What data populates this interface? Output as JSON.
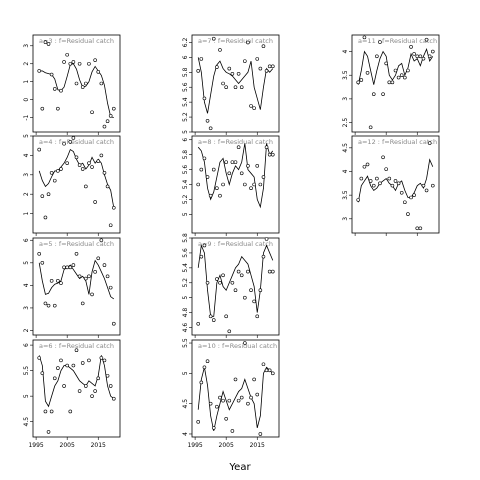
{
  "chart_data": {
    "type": "line",
    "xlabel": "Year",
    "x_ticks": [
      1995,
      2005,
      2015
    ],
    "xlim": [
      1994,
      2022
    ],
    "panels": [
      {
        "title": "a=3  :  f=Residual catch",
        "col": 0,
        "row": 0,
        "ylim": [
          -1.8,
          3.6
        ],
        "y_ticks": [
          -1,
          0,
          1,
          2,
          3
        ],
        "x": [
          1996,
          1997,
          1998,
          1999,
          2000,
          2001,
          2002,
          2003,
          2004,
          2005,
          2006,
          2007,
          2008,
          2009,
          2010,
          2011,
          2012,
          2013,
          2014,
          2015,
          2016,
          2017,
          2018,
          2019,
          2020
        ],
        "line": [
          1.6,
          1.6,
          1.5,
          1.45,
          1.4,
          1.15,
          0.55,
          0.5,
          0.7,
          1.3,
          1.95,
          2.0,
          1.7,
          1.1,
          0.7,
          0.75,
          1.0,
          1.55,
          1.85,
          1.6,
          1.35,
          0.8,
          -0.2,
          -0.95,
          -1.0
        ],
        "points": [
          1.6,
          -0.5,
          3.2,
          3.1,
          1.4,
          0.6,
          -0.5,
          0.5,
          2.1,
          2.5,
          2.0,
          2.1,
          0.9,
          2.0,
          0.7,
          0.9,
          2.0,
          -0.7,
          2.2,
          1.55,
          0.9,
          -1.5,
          -1.2,
          -0.9,
          -0.5
        ]
      },
      {
        "title": "a=4  :  f=Residual catch",
        "col": 0,
        "row": 1,
        "ylim": [
          0,
          5
        ],
        "y_ticks": [
          1,
          2,
          3,
          4,
          5
        ],
        "x": [
          1996,
          1997,
          1998,
          1999,
          2000,
          2001,
          2002,
          2003,
          2004,
          2005,
          2006,
          2007,
          2008,
          2009,
          2010,
          2011,
          2012,
          2013,
          2014,
          2015,
          2016,
          2017,
          2018,
          2019,
          2020
        ],
        "line": [
          3.2,
          2.7,
          2.4,
          2.55,
          2.9,
          3.2,
          3.2,
          3.4,
          3.6,
          3.9,
          4.3,
          4.2,
          3.8,
          3.5,
          3.6,
          3.3,
          3.5,
          3.9,
          3.6,
          3.8,
          3.6,
          3.0,
          2.5,
          2.2,
          1.3
        ],
        "points": [
          4.3,
          1.9,
          0.8,
          2.0,
          3.1,
          2.7,
          3.2,
          3.3,
          4.6,
          3.6,
          4.7,
          4.9,
          3.9,
          3.5,
          3.3,
          2.4,
          3.6,
          3.4,
          1.6,
          3.7,
          4.0,
          3.1,
          2.4,
          0.4,
          1.3
        ]
      },
      {
        "title": "a=5  :  f=Residual catch",
        "col": 0,
        "row": 2,
        "ylim": [
          1.8,
          6.1
        ],
        "y_ticks": [
          2,
          3,
          4,
          5,
          6
        ],
        "x": [
          1996,
          1997,
          1998,
          1999,
          2000,
          2001,
          2002,
          2003,
          2004,
          2005,
          2006,
          2007,
          2008,
          2009,
          2010,
          2011,
          2012,
          2013,
          2014,
          2015,
          2016,
          2017,
          2018,
          2019,
          2020
        ],
        "line": [
          5.0,
          4.2,
          3.6,
          3.65,
          3.9,
          4.05,
          4.1,
          4.2,
          4.7,
          4.8,
          4.9,
          4.7,
          4.5,
          4.3,
          4.4,
          4.2,
          3.6,
          4.6,
          5.1,
          4.9,
          4.6,
          4.3,
          3.9,
          3.5,
          3.4
        ],
        "points": [
          5.4,
          5.0,
          3.2,
          3.1,
          4.2,
          3.1,
          4.2,
          4.1,
          4.8,
          4.8,
          4.8,
          4.9,
          5.4,
          4.4,
          3.2,
          4.3,
          4.4,
          3.6,
          4.6,
          5.2,
          6.0,
          4.9,
          4.4,
          3.9,
          2.3
        ]
      },
      {
        "title": "a=6  :  f=Residual catch",
        "col": 0,
        "row": 3,
        "ylim": [
          4.2,
          6.1
        ],
        "y_ticks": [
          4.5,
          5.0,
          5.5,
          6.0
        ],
        "x": [
          1996,
          1997,
          1998,
          1999,
          2000,
          2001,
          2002,
          2003,
          2004,
          2005,
          2006,
          2007,
          2008,
          2009,
          2010,
          2011,
          2012,
          2013,
          2014,
          2015,
          2016,
          2017,
          2018,
          2019,
          2020
        ],
        "line": [
          5.8,
          5.6,
          4.9,
          4.8,
          5.0,
          5.2,
          5.3,
          5.5,
          5.6,
          5.6,
          5.55,
          5.5,
          5.4,
          5.3,
          5.25,
          5.2,
          5.3,
          5.25,
          5.2,
          5.4,
          5.8,
          5.6,
          5.2,
          5.0,
          4.95
        ],
        "points": [
          5.75,
          5.45,
          4.7,
          4.3,
          4.7,
          5.35,
          5.55,
          5.7,
          5.2,
          5.6,
          4.7,
          5.6,
          5.9,
          5.1,
          5.65,
          5.2,
          5.7,
          5.0,
          5.1,
          5.35,
          5.75,
          5.7,
          5.4,
          5.2,
          4.95
        ]
      },
      {
        "title": "a=7  :  f=Residual catch",
        "col": 1,
        "row": 0,
        "ylim": [
          5.0,
          6.3
        ],
        "y_ticks": [
          5.0,
          5.2,
          5.4,
          5.6,
          5.8,
          6.0,
          6.2
        ],
        "x": [
          1996,
          1997,
          1998,
          1999,
          2000,
          2001,
          2002,
          2003,
          2004,
          2005,
          2006,
          2007,
          2008,
          2009,
          2010,
          2011,
          2012,
          2013,
          2014,
          2015,
          2016,
          2017,
          2018,
          2019,
          2020
        ],
        "line": [
          6.0,
          5.8,
          5.4,
          5.25,
          5.5,
          5.75,
          5.9,
          5.95,
          5.85,
          5.8,
          5.78,
          5.75,
          5.7,
          5.65,
          5.7,
          5.75,
          5.8,
          5.95,
          5.6,
          5.45,
          5.3,
          5.6,
          5.85,
          5.8,
          5.85
        ],
        "points": [
          5.82,
          5.98,
          5.45,
          5.15,
          5.05,
          6.25,
          5.87,
          6.1,
          5.65,
          5.6,
          5.85,
          5.78,
          5.6,
          5.78,
          5.6,
          5.95,
          6.2,
          5.35,
          5.32,
          5.98,
          5.85,
          6.15,
          5.82,
          5.88,
          5.88
        ]
      },
      {
        "title": "a=8  :  f=Residual catch",
        "col": 1,
        "row": 1,
        "ylim": [
          4.75,
          6.05
        ],
        "y_ticks": [
          5.0,
          5.2,
          5.4,
          5.6,
          5.8,
          6.0
        ],
        "x": [
          1996,
          1997,
          1998,
          1999,
          2000,
          2001,
          2002,
          2003,
          2004,
          2005,
          2006,
          2007,
          2008,
          2009,
          2010,
          2011,
          2012,
          2013,
          2014,
          2015,
          2016,
          2017,
          2018,
          2019,
          2020
        ],
        "line": [
          5.9,
          5.85,
          5.7,
          5.35,
          5.2,
          5.3,
          5.5,
          5.7,
          5.75,
          5.55,
          5.4,
          5.55,
          5.65,
          5.6,
          5.7,
          5.95,
          5.6,
          5.55,
          5.5,
          5.2,
          5.1,
          5.35,
          5.95,
          5.8,
          5.85
        ],
        "points": [
          5.4,
          5.6,
          5.75,
          5.5,
          5.25,
          5.6,
          5.35,
          5.25,
          5.4,
          5.7,
          5.55,
          5.7,
          5.7,
          5.9,
          5.55,
          5.4,
          5.65,
          5.35,
          5.4,
          5.65,
          5.4,
          5.5,
          5.9,
          5.8,
          5.8
        ]
      },
      {
        "title": "a=9  :  f=Residual catch",
        "col": 1,
        "row": 2,
        "ylim": [
          4.5,
          5.8
        ],
        "y_ticks": [
          4.6,
          4.8,
          5.0,
          5.2,
          5.4,
          5.6,
          5.8
        ],
        "x": [
          1996,
          1997,
          1998,
          1999,
          2000,
          2001,
          2002,
          2003,
          2004,
          2005,
          2006,
          2007,
          2008,
          2009,
          2010,
          2011,
          2012,
          2013,
          2014,
          2015,
          2016,
          2017,
          2018,
          2019,
          2020
        ],
        "line": [
          5.4,
          5.7,
          5.6,
          5.1,
          4.75,
          4.75,
          5.2,
          5.3,
          5.15,
          5.1,
          5.2,
          5.3,
          5.4,
          5.45,
          5.55,
          5.5,
          5.45,
          5.3,
          5.15,
          4.8,
          5.1,
          5.6,
          5.7,
          5.6,
          5.5
        ],
        "points": [
          4.65,
          5.55,
          5.7,
          5.2,
          4.75,
          4.7,
          5.25,
          5.2,
          5.3,
          4.75,
          4.55,
          5.2,
          5.1,
          5.35,
          5.3,
          5.0,
          5.35,
          5.1,
          4.95,
          4.75,
          5.1,
          5.55,
          5.8,
          5.35,
          5.35
        ]
      },
      {
        "title": "a=10  :  f=Residual catch",
        "col": 1,
        "row": 3,
        "ylim": [
          3.95,
          5.55
        ],
        "y_ticks": [
          4.0,
          4.5,
          5.0,
          5.5
        ],
        "x": [
          1996,
          1997,
          1998,
          1999,
          2000,
          2001,
          2002,
          2003,
          2004,
          2005,
          2006,
          2007,
          2008,
          2009,
          2010,
          2011,
          2012,
          2013,
          2014,
          2015,
          2016,
          2017,
          2018,
          2019,
          2020
        ],
        "line": [
          4.4,
          4.9,
          5.1,
          4.8,
          4.3,
          4.05,
          4.3,
          4.5,
          4.7,
          4.55,
          4.4,
          4.5,
          4.6,
          4.7,
          4.75,
          4.9,
          4.75,
          4.6,
          4.5,
          4.1,
          4.3,
          5.0,
          5.1,
          5.05,
          5.0
        ],
        "points": [
          4.2,
          4.85,
          5.1,
          5.2,
          4.5,
          4.1,
          4.45,
          4.6,
          4.55,
          4.25,
          4.55,
          4.05,
          4.9,
          4.55,
          4.6,
          5.5,
          4.5,
          4.6,
          4.9,
          4.65,
          4.0,
          5.15,
          5.05,
          5.05,
          5.0
        ]
      },
      {
        "title": "a=11  :  f=Residual catch",
        "col": 2,
        "row": 0,
        "ylim": [
          2.3,
          4.35
        ],
        "y_ticks": [
          2.5,
          3.0,
          3.5,
          4.0
        ],
        "x": [
          1996,
          1997,
          1998,
          1999,
          2000,
          2001,
          2002,
          2003,
          2004,
          2005,
          2006,
          2007,
          2008,
          2009,
          2010,
          2011,
          2012,
          2013,
          2014,
          2015,
          2016,
          2017,
          2018,
          2019,
          2020
        ],
        "line": [
          3.3,
          3.6,
          4.0,
          3.9,
          3.6,
          3.3,
          3.6,
          3.85,
          4.0,
          3.9,
          3.5,
          3.4,
          3.5,
          3.7,
          3.75,
          3.5,
          3.65,
          3.95,
          3.8,
          3.85,
          3.7,
          3.9,
          4.05,
          3.8,
          3.9
        ],
        "points": [
          3.35,
          3.4,
          4.3,
          3.55,
          2.4,
          3.1,
          3.9,
          4.2,
          3.1,
          3.75,
          3.35,
          3.35,
          3.6,
          3.45,
          3.5,
          3.45,
          3.6,
          4.1,
          3.95,
          3.9,
          3.9,
          3.85,
          4.25,
          3.9,
          4.0
        ]
      },
      {
        "title": "a=12  :  f=Residual catch",
        "col": 2,
        "row": 1,
        "ylim": [
          2.7,
          4.75
        ],
        "y_ticks": [
          3.0,
          3.5,
          4.0,
          4.5
        ],
        "x": [
          1996,
          1997,
          1998,
          1999,
          2000,
          2001,
          2002,
          2003,
          2004,
          2005,
          2006,
          2007,
          2008,
          2009,
          2010,
          2011,
          2012,
          2013,
          2014,
          2015,
          2016,
          2017,
          2018,
          2019,
          2020
        ],
        "line": [
          3.35,
          3.7,
          3.8,
          3.9,
          3.7,
          3.6,
          3.65,
          3.75,
          3.8,
          3.85,
          3.75,
          3.7,
          3.6,
          3.75,
          3.8,
          3.6,
          3.45,
          3.45,
          3.55,
          3.7,
          3.75,
          3.65,
          3.85,
          4.25,
          4.1
        ],
        "points": [
          3.4,
          3.85,
          4.1,
          4.15,
          3.8,
          3.7,
          3.85,
          3.75,
          4.3,
          4.05,
          3.85,
          3.7,
          3.8,
          3.75,
          3.55,
          3.35,
          3.1,
          3.45,
          3.5,
          2.8,
          2.8,
          3.7,
          3.6,
          4.6,
          3.7
        ]
      }
    ]
  }
}
